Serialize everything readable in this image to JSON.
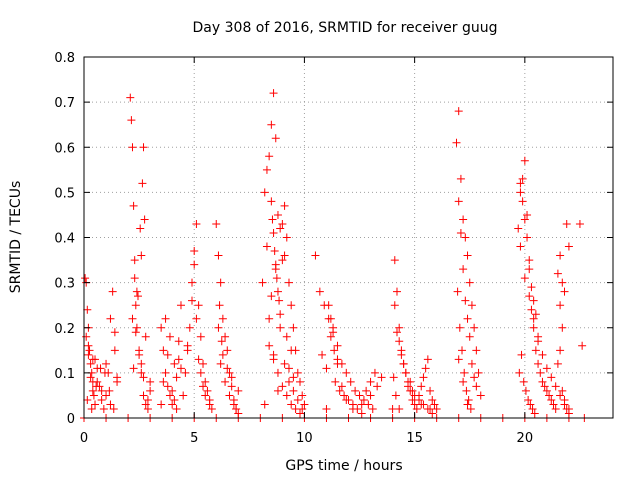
{
  "chart_data": {
    "type": "scatter",
    "title": "Day 308 of 2016, SRMTID for receiver guug",
    "xlabel": "GPS time / hours",
    "ylabel": "SRMTID / TECUs",
    "xlim": [
      0,
      24
    ],
    "ylim": [
      0,
      0.8
    ],
    "xticks": [
      0,
      5,
      10,
      15,
      20
    ],
    "xtick_labels": [
      "0",
      "5",
      "10",
      "15",
      "20"
    ],
    "yticks": [
      0,
      0.1,
      0.2,
      0.3,
      0.4,
      0.5,
      0.6,
      0.7,
      0.8
    ],
    "ytick_labels": [
      "0",
      "0.1",
      "0.2",
      "0.3",
      "0.4",
      "0.5",
      "0.6",
      "0.7",
      "0.8"
    ],
    "grid": true,
    "marker": "+",
    "color": "#ff0000",
    "series": [
      {
        "name": "SRMTID",
        "x": [
          0.05,
          0.1,
          0.15,
          0.2,
          0.25,
          0.3,
          0.35,
          0.4,
          0.45,
          0.5,
          0.1,
          0.2,
          0.3,
          0.4,
          0.5,
          0.6,
          0.7,
          0.8,
          0.9,
          1.0,
          1.1,
          1.2,
          1.3,
          1.4,
          1.5,
          0.2,
          0.4,
          0.6,
          0.8,
          1.0,
          1.2,
          1.4,
          0.15,
          0.35,
          0.55,
          0.75,
          0.95,
          1.15,
          1.35,
          1.5,
          2.1,
          2.15,
          2.2,
          2.25,
          2.3,
          2.35,
          2.4,
          2.5,
          2.6,
          2.7,
          2.8,
          2.9,
          3.0,
          2.2,
          2.4,
          2.6,
          2.8,
          3.0,
          2.3,
          2.5,
          2.7,
          2.9,
          2.65,
          2.7,
          2.75,
          2.55,
          2.6,
          2.45,
          2.35,
          2.25,
          3.5,
          3.6,
          3.7,
          3.8,
          3.9,
          4.0,
          4.1,
          4.2,
          4.3,
          4.4,
          3.6,
          3.8,
          4.0,
          4.2,
          4.4,
          3.7,
          3.9,
          4.1,
          4.3,
          3.5,
          4.5,
          4.6,
          4.7,
          4.8,
          4.9,
          5.0,
          5.1,
          5.2,
          5.3,
          5.4,
          5.5,
          5.6,
          5.7,
          5.8,
          4.7,
          4.9,
          5.1,
          5.3,
          5.5,
          5.7,
          5.0,
          5.2,
          5.4,
          6.0,
          6.1,
          6.2,
          6.3,
          6.4,
          6.5,
          6.6,
          6.7,
          6.8,
          6.9,
          7.0,
          6.2,
          6.4,
          6.6,
          6.8,
          7.0,
          6.1,
          6.3,
          6.5,
          6.7,
          6.9,
          6.15,
          6.25,
          8.1,
          8.2,
          8.3,
          8.4,
          8.5,
          8.6,
          8.7,
          8.8,
          8.9,
          9.0,
          9.1,
          9.2,
          9.3,
          9.4,
          9.5,
          9.6,
          9.7,
          9.8,
          9.9,
          10.0,
          8.3,
          8.5,
          8.7,
          8.9,
          9.1,
          9.3,
          9.5,
          9.7,
          9.9,
          8.4,
          8.6,
          8.8,
          9.0,
          9.2,
          9.4,
          9.6,
          9.8,
          8.5,
          8.55,
          8.6,
          8.65,
          8.7,
          8.75,
          8.8,
          8.85,
          8.9,
          9.0,
          9.1,
          9.2,
          9.3,
          9.4,
          9.5,
          8.2,
          8.4,
          8.6,
          8.8,
          10.5,
          10.7,
          10.9,
          11.1,
          11.3,
          11.5,
          11.7,
          11.9,
          12.1,
          12.3,
          12.5,
          12.7,
          12.9,
          13.1,
          13.3,
          13.5,
          10.8,
          11.0,
          11.2,
          11.4,
          11.6,
          11.8,
          12.0,
          12.2,
          12.4,
          12.6,
          12.8,
          13.0,
          13.2,
          11.1,
          11.3,
          11.5,
          11.7,
          11.9,
          12.2,
          12.6,
          13.0,
          11.0,
          11.2,
          11.35,
          11.5,
          14.0,
          14.1,
          14.2,
          14.3,
          14.4,
          14.5,
          14.6,
          14.7,
          14.8,
          14.9,
          15.0,
          15.1,
          15.2,
          15.3,
          15.4,
          15.5,
          15.6,
          15.7,
          15.8,
          15.9,
          16.0,
          14.2,
          14.4,
          14.6,
          14.8,
          15.0,
          15.2,
          15.4,
          15.6,
          15.8,
          14.1,
          14.3,
          14.5,
          14.7,
          14.9,
          15.3,
          15.7,
          14.05,
          14.15,
          14.3,
          16.9,
          17.0,
          17.1,
          17.2,
          17.3,
          17.4,
          17.5,
          17.6,
          17.7,
          17.8,
          17.9,
          18.0,
          17.0,
          17.2,
          17.4,
          17.6,
          17.8,
          17.1,
          17.3,
          17.5,
          17.7,
          16.95,
          17.05,
          17.15,
          17.25,
          17.35,
          17.45,
          17.55,
          17.0,
          17.2,
          17.4,
          19.7,
          19.8,
          19.9,
          20.0,
          20.1,
          20.2,
          20.3,
          20.4,
          20.5,
          20.6,
          20.7,
          20.8,
          20.9,
          21.0,
          21.1,
          21.2,
          21.3,
          21.4,
          21.5,
          21.6,
          21.7,
          21.8,
          21.9,
          22.0,
          19.8,
          20.0,
          20.2,
          20.4,
          20.6,
          20.8,
          21.0,
          21.2,
          21.4,
          21.6,
          21.8,
          22.0,
          19.75,
          19.85,
          19.95,
          20.05,
          20.15,
          20.25,
          20.35,
          20.45,
          19.8,
          19.9,
          20.0,
          20.1,
          20.2,
          20.3,
          20.4,
          20.5,
          20.6,
          21.5,
          21.6,
          21.7,
          21.8,
          21.9,
          22.0,
          22.5,
          22.6,
          21.6,
          21.7,
          0.0,
          1.0,
          2.0,
          3.0,
          4.0,
          5.0,
          6.0,
          7.0,
          8.0,
          9.0,
          10.0,
          11.0,
          12.0,
          13.0,
          14.0,
          15.0,
          16.0,
          17.0,
          18.0,
          19.0,
          20.0,
          21.0,
          22.0,
          22.7
        ],
        "y": [
          0.31,
          0.3,
          0.24,
          0.2,
          0.15,
          0.12,
          0.1,
          0.08,
          0.05,
          0.03,
          0.18,
          0.14,
          0.09,
          0.06,
          0.13,
          0.11,
          0.07,
          0.04,
          0.02,
          0.12,
          0.1,
          0.22,
          0.28,
          0.15,
          0.09,
          0.16,
          0.13,
          0.08,
          0.06,
          0.05,
          0.03,
          0.19,
          0.04,
          0.02,
          0.07,
          0.11,
          0.1,
          0.06,
          0.02,
          0.08,
          0.71,
          0.66,
          0.6,
          0.47,
          0.31,
          0.25,
          0.2,
          0.15,
          0.1,
          0.05,
          0.03,
          0.02,
          0.08,
          0.22,
          0.28,
          0.12,
          0.18,
          0.06,
          0.35,
          0.14,
          0.09,
          0.04,
          0.52,
          0.6,
          0.44,
          0.42,
          0.36,
          0.27,
          0.19,
          0.11,
          0.2,
          0.15,
          0.1,
          0.07,
          0.05,
          0.03,
          0.12,
          0.09,
          0.17,
          0.25,
          0.08,
          0.14,
          0.06,
          0.02,
          0.11,
          0.22,
          0.18,
          0.04,
          0.13,
          0.03,
          0.05,
          0.1,
          0.15,
          0.2,
          0.26,
          0.34,
          0.43,
          0.25,
          0.18,
          0.12,
          0.08,
          0.06,
          0.04,
          0.02,
          0.16,
          0.3,
          0.22,
          0.1,
          0.05,
          0.03,
          0.37,
          0.13,
          0.07,
          0.43,
          0.36,
          0.3,
          0.22,
          0.18,
          0.15,
          0.1,
          0.07,
          0.04,
          0.02,
          0.01,
          0.12,
          0.08,
          0.05,
          0.03,
          0.06,
          0.2,
          0.14,
          0.11,
          0.09,
          0.02,
          0.25,
          0.17,
          0.3,
          0.5,
          0.55,
          0.58,
          0.65,
          0.72,
          0.62,
          0.45,
          0.42,
          0.35,
          0.47,
          0.4,
          0.3,
          0.25,
          0.2,
          0.15,
          0.1,
          0.08,
          0.05,
          0.03,
          0.38,
          0.27,
          0.33,
          0.2,
          0.12,
          0.08,
          0.06,
          0.04,
          0.02,
          0.22,
          0.14,
          0.1,
          0.07,
          0.05,
          0.03,
          0.02,
          0.01,
          0.48,
          0.44,
          0.41,
          0.37,
          0.34,
          0.31,
          0.28,
          0.26,
          0.23,
          0.43,
          0.36,
          0.18,
          0.11,
          0.15,
          0.09,
          0.03,
          0.16,
          0.13,
          0.06,
          0.36,
          0.28,
          0.25,
          0.22,
          0.2,
          0.16,
          0.12,
          0.1,
          0.08,
          0.06,
          0.05,
          0.04,
          0.03,
          0.02,
          0.07,
          0.09,
          0.14,
          0.11,
          0.18,
          0.08,
          0.06,
          0.05,
          0.04,
          0.03,
          0.02,
          0.01,
          0.06,
          0.05,
          0.1,
          0.25,
          0.19,
          0.13,
          0.07,
          0.04,
          0.02,
          0.03,
          0.08,
          0.02,
          0.22,
          0.15,
          0.12,
          0.02,
          0.35,
          0.28,
          0.2,
          0.15,
          0.12,
          0.1,
          0.08,
          0.06,
          0.04,
          0.03,
          0.02,
          0.05,
          0.07,
          0.09,
          0.11,
          0.13,
          0.06,
          0.04,
          0.03,
          0.02,
          0.19,
          0.14,
          0.1,
          0.08,
          0.05,
          0.04,
          0.03,
          0.02,
          0.01,
          0.25,
          0.17,
          0.12,
          0.07,
          0.06,
          0.03,
          0.02,
          0.09,
          0.05,
          0.02,
          0.61,
          0.68,
          0.53,
          0.44,
          0.4,
          0.36,
          0.3,
          0.25,
          0.2,
          0.15,
          0.1,
          0.05,
          0.48,
          0.33,
          0.22,
          0.12,
          0.07,
          0.41,
          0.26,
          0.18,
          0.09,
          0.28,
          0.2,
          0.15,
          0.1,
          0.06,
          0.04,
          0.02,
          0.13,
          0.08,
          0.03,
          0.42,
          0.52,
          0.53,
          0.57,
          0.45,
          0.35,
          0.24,
          0.2,
          0.15,
          0.12,
          0.1,
          0.08,
          0.07,
          0.06,
          0.05,
          0.04,
          0.03,
          0.02,
          0.12,
          0.15,
          0.06,
          0.04,
          0.02,
          0.01,
          0.38,
          0.31,
          0.27,
          0.22,
          0.18,
          0.14,
          0.11,
          0.09,
          0.07,
          0.05,
          0.03,
          0.02,
          0.1,
          0.14,
          0.08,
          0.06,
          0.04,
          0.03,
          0.02,
          0.01,
          0.5,
          0.48,
          0.44,
          0.4,
          0.33,
          0.29,
          0.26,
          0.23,
          0.17,
          0.32,
          0.36,
          0.3,
          0.28,
          0.43,
          0.38,
          0.43,
          0.16,
          0.25,
          0.2,
          0.0,
          0.0,
          0.0,
          0.0,
          0.0,
          0.0,
          0.0,
          0.0,
          0.0,
          0.0,
          0.0,
          0.0,
          0.0,
          0.0,
          0.0,
          0.0,
          0.0,
          0.0,
          0.0,
          0.0,
          0.0,
          0.0,
          0.0,
          0.0
        ]
      }
    ]
  }
}
